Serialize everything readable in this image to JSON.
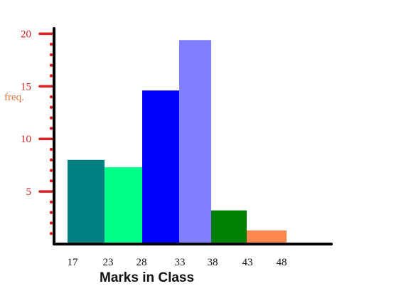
{
  "chart_data": {
    "type": "bar",
    "title": "",
    "xlabel": "Marks in Class",
    "ylabel": "freq.",
    "x_edges": [
      17,
      23,
      28,
      33,
      38,
      43,
      48
    ],
    "bars": [
      {
        "x_start": 17,
        "x_end": 23,
        "value": 8.0,
        "color": "#008080"
      },
      {
        "x_start": 23,
        "x_end": 28,
        "value": 7.3,
        "color": "#00ff88"
      },
      {
        "x_start": 28,
        "x_end": 33,
        "value": 14.6,
        "color": "#0000ff"
      },
      {
        "x_start": 33,
        "x_end": 38,
        "value": 19.4,
        "color": "#8080ff"
      },
      {
        "x_start": 38,
        "x_end": 43,
        "value": 3.2,
        "color": "#008000"
      },
      {
        "x_start": 43,
        "x_end": 48,
        "value": 1.3,
        "color": "#ff8850"
      }
    ],
    "y_ticks": [
      5,
      10,
      15,
      20
    ],
    "ylim": [
      0,
      20.5
    ],
    "grid": false,
    "colors": {
      "axis": "#000000",
      "ytick_marks": "#e02020",
      "ytick_labels": "#d42020",
      "ylabel": "#e0783a"
    }
  }
}
